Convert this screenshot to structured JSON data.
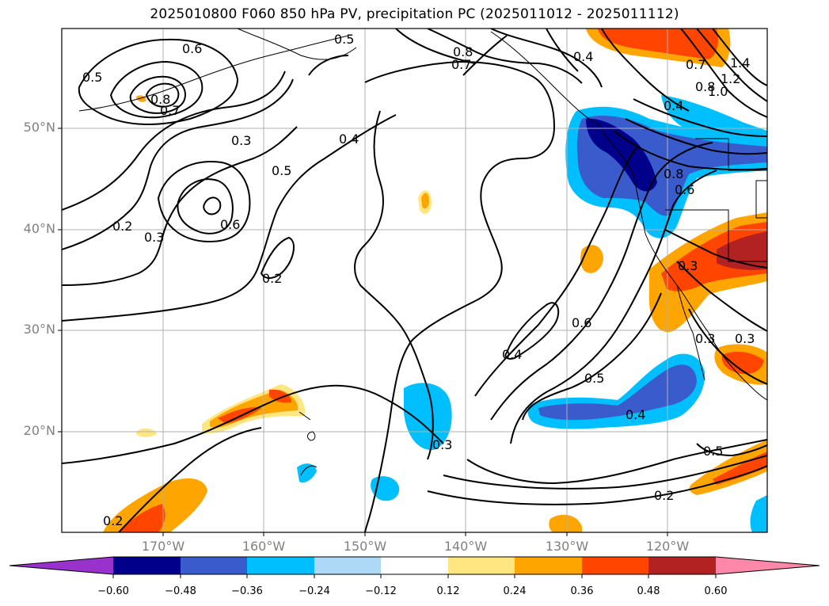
{
  "title": "2025010800 F060 850 hPa PV, precipitation PC (2025011012 - 2025011112)",
  "map": {
    "lat_labels": [
      "50°N",
      "40°N",
      "30°N",
      "20°N"
    ],
    "lon_labels": [
      "170°W",
      "160°W",
      "150°W",
      "140°W",
      "130°W",
      "120°W"
    ],
    "contour_labels": [
      "0.5",
      "0.6",
      "0.8",
      "0.7",
      "0.3",
      "0.5",
      "0.4",
      "0.6",
      "0.2",
      "0.3",
      "0.2",
      "0.8",
      "0.7",
      "0.4",
      "0.5",
      "0.6",
      "0.4",
      "0.8",
      "0.6",
      "0.3",
      "0.3",
      "0.3",
      "0.4",
      "0.5",
      "0.4",
      "0.3",
      "0.5",
      "0.2",
      "0.2",
      "1.4",
      "1.2",
      "1.0",
      "0.8",
      "0.7"
    ]
  },
  "colorbar": {
    "ticks": [
      "−0.60",
      "−0.48",
      "−0.36",
      "−0.24",
      "−0.12",
      "0.12",
      "0.24",
      "0.36",
      "0.48",
      "0.60"
    ],
    "colors": [
      "#9932cc",
      "#00008b",
      "#3a5bcc",
      "#00bfff",
      "#add8f6",
      "#ffffff",
      "#ffe680",
      "#ffa500",
      "#ff4500",
      "#b22222",
      "#ff88aa"
    ]
  }
}
